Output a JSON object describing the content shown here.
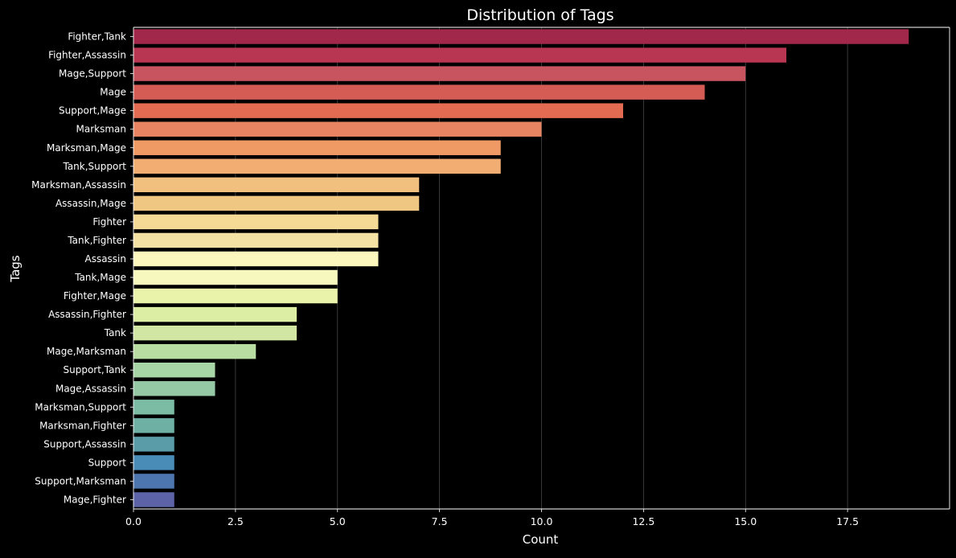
{
  "chart_data": {
    "type": "bar",
    "orientation": "horizontal",
    "title": "Distribution of Tags",
    "xlabel": "Count",
    "ylabel": "Tags",
    "xlim": [
      0,
      20
    ],
    "x_ticks": [
      0.0,
      2.5,
      5.0,
      7.5,
      10.0,
      12.5,
      15.0,
      17.5
    ],
    "x_tick_labels": [
      "0.0",
      "2.5",
      "5.0",
      "7.5",
      "10.0",
      "12.5",
      "15.0",
      "17.5"
    ],
    "grid": "vertical",
    "categories": [
      "Fighter,Tank",
      "Fighter,Assassin",
      "Mage,Support",
      "Mage",
      "Support,Mage",
      "Marksman",
      "Marksman,Mage",
      "Tank,Support",
      "Marksman,Assassin",
      "Assassin,Mage",
      "Fighter",
      "Tank,Fighter",
      "Assassin",
      "Tank,Mage",
      "Fighter,Mage",
      "Assassin,Fighter",
      "Tank",
      "Mage,Marksman",
      "Support,Tank",
      "Mage,Assassin",
      "Marksman,Support",
      "Marksman,Fighter",
      "Support,Assassin",
      "Support",
      "Support,Marksman",
      "Mage,Fighter"
    ],
    "values": [
      19,
      16,
      15,
      14,
      12,
      10,
      9,
      9,
      7,
      7,
      6,
      6,
      6,
      5,
      5,
      4,
      4,
      3,
      2,
      2,
      1,
      1,
      1,
      1,
      1,
      1
    ],
    "colors": [
      "#A1284A",
      "#B83651",
      "#C8545F",
      "#D55B55",
      "#E26B52",
      "#E98462",
      "#EF9964",
      "#F2AE72",
      "#F1C07E",
      "#F0C683",
      "#F5DA96",
      "#F4E2A5",
      "#FBF7BD",
      "#F6F8BE",
      "#E9F3AA",
      "#DBEEA3",
      "#D0E6A2",
      "#B9DCA3",
      "#A7D5A5",
      "#95C9A6",
      "#7DBCA4",
      "#6EB0A3",
      "#5A9CA8",
      "#4A8CB8",
      "#4E76AE",
      "#5C64A7"
    ]
  }
}
